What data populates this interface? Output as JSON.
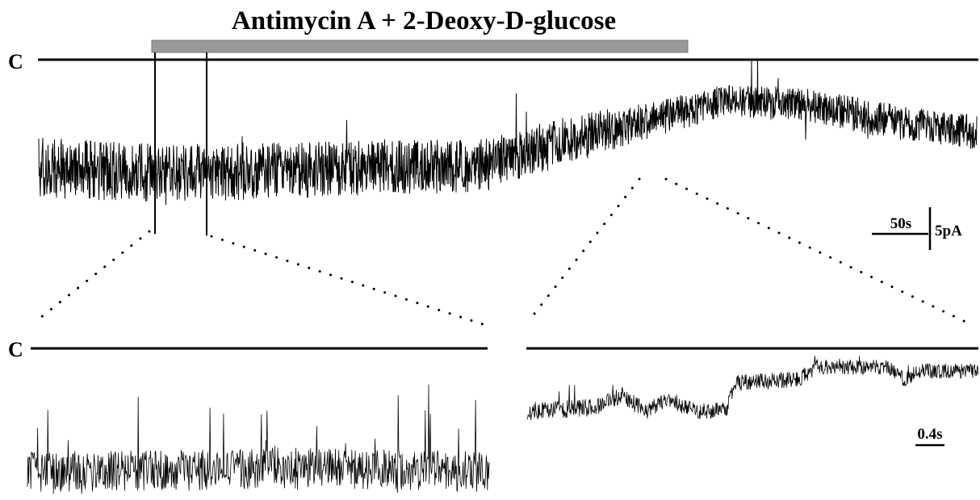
{
  "title": "Antimycin A + 2-Deoxy-D-glucose",
  "closed_label": "C",
  "scale_bars": {
    "top_time": "50s",
    "top_current": "5pA",
    "bottom_time": "0.4s"
  },
  "colors": {
    "trace": "#000000",
    "drug_bar": "#999999",
    "background": "#ffffff"
  }
}
